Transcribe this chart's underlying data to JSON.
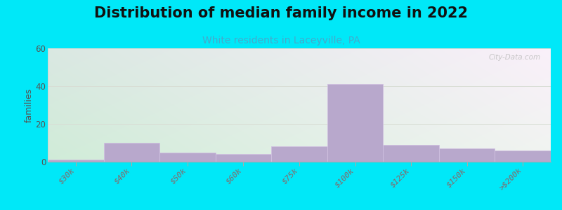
{
  "title": "Distribution of median family income in 2022",
  "subtitle": "White residents in Laceyville, PA",
  "ylabel": "families",
  "categories": [
    "$30k",
    "$40k",
    "$50k",
    "$60k",
    "$75k",
    "$100k",
    "$125k",
    "$150k",
    ">$200k"
  ],
  "values": [
    1,
    10,
    5,
    4,
    8,
    41,
    9,
    7,
    6
  ],
  "bar_color": "#b8a8cc",
  "bar_edge_color": "#d0c0e0",
  "ylim": [
    0,
    60
  ],
  "yticks": [
    0,
    20,
    40,
    60
  ],
  "background_outer": "#00e8f8",
  "bg_top_left": "#d0ecd8",
  "bg_top_right": "#e8f0ec",
  "bg_bottom_left": "#e0f4e8",
  "bg_bottom_right": "#f8f8f8",
  "title_fontsize": 15,
  "subtitle_fontsize": 10,
  "subtitle_color": "#44aacc",
  "watermark": "City-Data.com",
  "grid_color": "#d8ddd4",
  "tick_label_color": "#886666",
  "ylabel_color": "#555555"
}
